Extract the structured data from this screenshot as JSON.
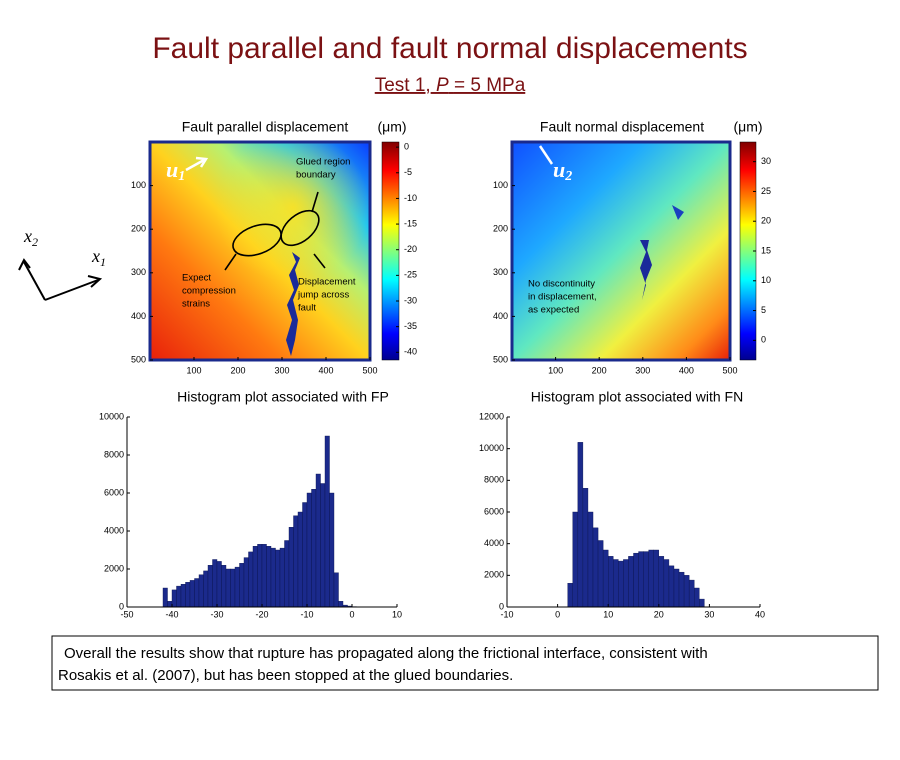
{
  "title": "Fault parallel and fault normal displacements",
  "subtitle": {
    "lead": "Test 1,",
    "variable": "P",
    "rest": "= 5 MPa"
  },
  "coordinate_axes": [
    {
      "symbol": "x",
      "subscript": "2"
    },
    {
      "symbol": "x",
      "subscript": "1"
    }
  ],
  "maps": [
    {
      "title": "Fault parallel displacement",
      "unit": "(μm)",
      "symbol": "u",
      "subscript": "1",
      "xlim": [
        0,
        500
      ],
      "ylim": [
        0,
        500
      ],
      "xticks": [
        100,
        200,
        300,
        400,
        500
      ],
      "yticks": [
        100,
        200,
        300,
        400,
        500
      ],
      "colorbar_lim": [
        -41.5,
        1
      ],
      "colorbar_ticks": [
        0,
        -5,
        -10,
        -15,
        -20,
        -25,
        -30,
        -35,
        -40
      ],
      "annotations": [
        {
          "lines": [
            "Glued region",
            "boundary"
          ]
        },
        {
          "lines": [
            "Expect",
            "compression",
            "strains"
          ]
        },
        {
          "lines": [
            "Displacement",
            "jump across",
            "fault"
          ]
        }
      ]
    },
    {
      "title": "Fault normal displacement",
      "unit": "(μm)",
      "symbol": "u",
      "subscript": "2",
      "xlim": [
        0,
        500
      ],
      "ylim": [
        0,
        500
      ],
      "xticks": [
        100,
        200,
        300,
        400,
        500
      ],
      "yticks": [
        100,
        200,
        300,
        400,
        500
      ],
      "colorbar_lim": [
        -3.3,
        33.3
      ],
      "colorbar_ticks": [
        30,
        25,
        20,
        15,
        10,
        5,
        0
      ],
      "annotations": [
        {
          "lines": [
            "No discontinuity",
            "in displacement,",
            "as expected"
          ]
        }
      ]
    }
  ],
  "chart_data": [
    {
      "type": "histogram",
      "title": "Histogram plot associated with FP",
      "color": "#1b2a8c",
      "bins": [
        -42,
        -41,
        -40,
        -39,
        -38,
        -37,
        -36,
        -35,
        -34,
        -33,
        -32,
        -31,
        -30,
        -29,
        -28,
        -27,
        -26,
        -25,
        -24,
        -23,
        -22,
        -21,
        -20,
        -19,
        -18,
        -17,
        -16,
        -15,
        -14,
        -13,
        -12,
        -11,
        -10,
        -9,
        -8,
        -7,
        -6,
        -5,
        -4,
        -3,
        -2,
        -1,
        0,
        1,
        2
      ],
      "counts": [
        1000,
        300,
        900,
        1100,
        1200,
        1300,
        1400,
        1500,
        1700,
        1900,
        2200,
        2500,
        2400,
        2200,
        2000,
        2000,
        2100,
        2300,
        2600,
        2900,
        3200,
        3300,
        3300,
        3200,
        3100,
        3000,
        3100,
        3500,
        4200,
        4800,
        5000,
        5500,
        6000,
        6200,
        7000,
        6500,
        9000,
        6000,
        1800,
        300,
        100,
        50,
        20,
        0
      ],
      "xlim": [
        -50,
        10
      ],
      "xticks": [
        -50,
        -40,
        -30,
        -20,
        -10,
        0,
        10
      ],
      "ylim": [
        0,
        10000
      ],
      "yticks": [
        0,
        2000,
        4000,
        6000,
        8000,
        10000
      ]
    },
    {
      "type": "histogram",
      "title": "Histogram plot associated with FN",
      "color": "#1b2a8c",
      "bins": [
        2,
        3,
        4,
        5,
        6,
        7,
        8,
        9,
        10,
        11,
        12,
        13,
        14,
        15,
        16,
        17,
        18,
        19,
        20,
        21,
        22,
        23,
        24,
        25,
        26,
        27,
        28,
        29
      ],
      "counts": [
        1500,
        6000,
        10400,
        7500,
        6000,
        5000,
        4200,
        3600,
        3200,
        3000,
        2900,
        3000,
        3200,
        3400,
        3500,
        3500,
        3600,
        3600,
        3200,
        3000,
        2600,
        2400,
        2200,
        2000,
        1700,
        1200,
        500
      ],
      "xlim": [
        -10,
        40
      ],
      "xticks": [
        -10,
        0,
        10,
        20,
        30,
        40
      ],
      "ylim": [
        0,
        12000
      ],
      "yticks": [
        0,
        2000,
        4000,
        6000,
        8000,
        10000,
        12000
      ]
    }
  ],
  "note": [
    "Overall the results show that rupture has propagated along the frictional interface, consistent with",
    "Rosakis et al. (2007), but has been stopped at the glued boundaries."
  ]
}
